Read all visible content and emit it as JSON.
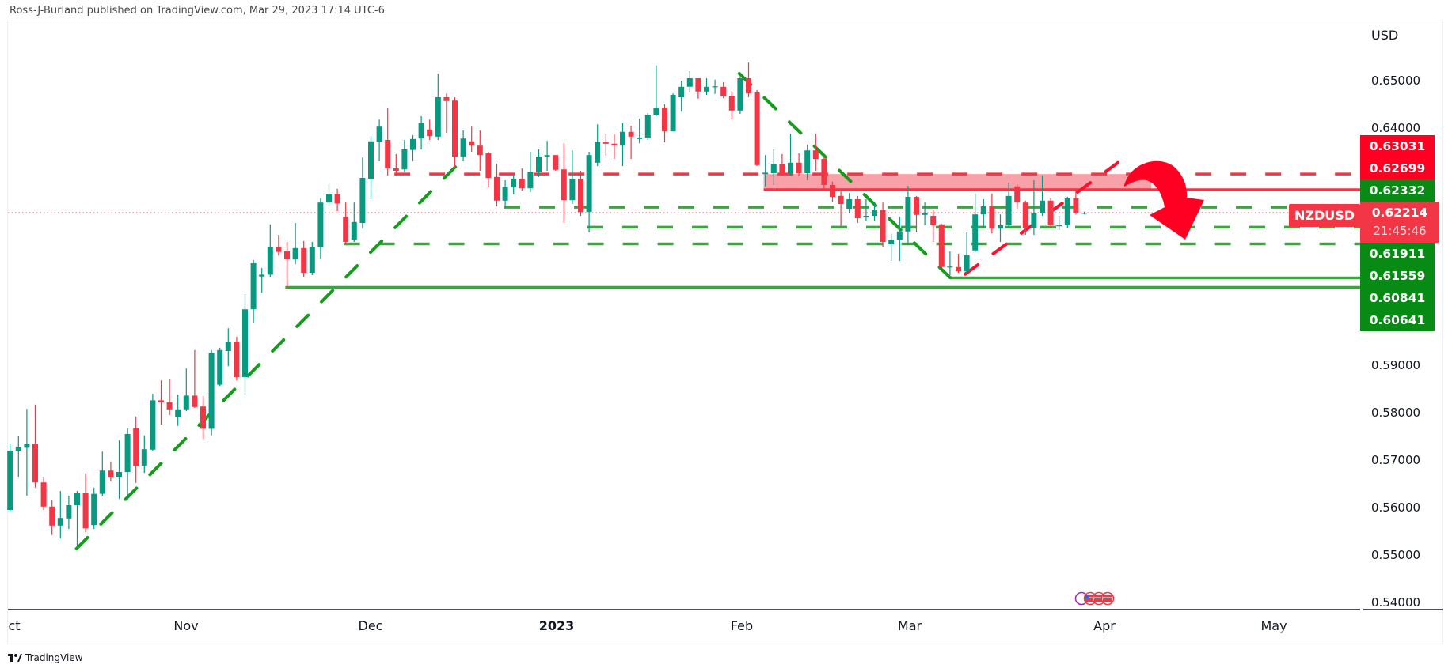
{
  "header": {
    "text": "Ross-J-Burland published on TradingView.com, Mar 29, 2023 17:14 UTC-6"
  },
  "footer": {
    "logo_text": "TradingView"
  },
  "colors": {
    "up": "#089981",
    "down": "#f23645",
    "line_red": "#f23645",
    "line_green": "#3ba33f",
    "trend_green": "#149c1c",
    "zone": "#f9a1a8",
    "arrow": "#ff0022",
    "tag_red": "#ff0022",
    "tag_green": "#078b15",
    "current_price_line": "#f23645"
  },
  "chart_data": {
    "type": "candlestick",
    "symbol": "NZDUSD",
    "currency": "USD",
    "ylim": [
      0.54,
      0.65
    ],
    "y_ticks": [
      "0.65000",
      "0.64000",
      "0.59000",
      "0.58000",
      "0.57000",
      "0.56000",
      "0.55000",
      "0.54000"
    ],
    "x_ticks": [
      "ct",
      "Nov",
      "Dec",
      "2023",
      "Feb",
      "Mar",
      "Apr",
      "May"
    ],
    "current_price": "0.62214",
    "countdown": "21:45:46",
    "candles_ohlc": [
      [
        0.5595,
        0.5735,
        0.559,
        0.572
      ],
      [
        0.572,
        0.575,
        0.5665,
        0.5728
      ],
      [
        0.5726,
        0.5808,
        0.5625,
        0.5735
      ],
      [
        0.5735,
        0.5817,
        0.5642,
        0.5653
      ],
      [
        0.5653,
        0.5665,
        0.5595,
        0.5602
      ],
      [
        0.5602,
        0.5616,
        0.5542,
        0.5562
      ],
      [
        0.5562,
        0.5635,
        0.5535,
        0.5578
      ],
      [
        0.5577,
        0.5625,
        0.5555,
        0.5605
      ],
      [
        0.5605,
        0.5635,
        0.5515,
        0.563
      ],
      [
        0.563,
        0.5672,
        0.5548,
        0.5556
      ],
      [
        0.5563,
        0.5642,
        0.5555,
        0.5629
      ],
      [
        0.5629,
        0.5718,
        0.5625,
        0.5678
      ],
      [
        0.5678,
        0.5697,
        0.5655,
        0.5665
      ],
      [
        0.5665,
        0.5742,
        0.5618,
        0.5675
      ],
      [
        0.5675,
        0.5767,
        0.5615,
        0.5755
      ],
      [
        0.5767,
        0.5792,
        0.5652,
        0.5688
      ],
      [
        0.5688,
        0.5752,
        0.5673,
        0.5723
      ],
      [
        0.5722,
        0.584,
        0.572,
        0.5826
      ],
      [
        0.5826,
        0.5868,
        0.5775,
        0.5822
      ],
      [
        0.5822,
        0.587,
        0.5795,
        0.5807
      ],
      [
        0.579,
        0.5838,
        0.5772,
        0.5807
      ],
      [
        0.5807,
        0.5893,
        0.5803,
        0.5836
      ],
      [
        0.5836,
        0.5932,
        0.581,
        0.5812
      ],
      [
        0.5813,
        0.5835,
        0.5745,
        0.5766
      ],
      [
        0.5766,
        0.5932,
        0.5752,
        0.5926
      ],
      [
        0.5859,
        0.5937,
        0.5856,
        0.5932
      ],
      [
        0.593,
        0.5978,
        0.5898,
        0.595
      ],
      [
        0.595,
        0.596,
        0.5868,
        0.5875
      ],
      [
        0.5875,
        0.605,
        0.5838,
        0.6018
      ],
      [
        0.6018,
        0.6122,
        0.599,
        0.6115
      ],
      [
        0.6087,
        0.6105,
        0.6053,
        0.6091
      ],
      [
        0.6091,
        0.6197,
        0.6085,
        0.615
      ],
      [
        0.615,
        0.6175,
        0.6131,
        0.6139
      ],
      [
        0.614,
        0.616,
        0.6063,
        0.6123
      ],
      [
        0.6123,
        0.62,
        0.6113,
        0.6147
      ],
      [
        0.6147,
        0.6162,
        0.6085,
        0.6095
      ],
      [
        0.6095,
        0.616,
        0.609,
        0.615
      ],
      [
        0.6149,
        0.6252,
        0.6125,
        0.6243
      ],
      [
        0.6243,
        0.6283,
        0.6235,
        0.626
      ],
      [
        0.626,
        0.6272,
        0.6225,
        0.6241
      ],
      [
        0.6213,
        0.6243,
        0.6156,
        0.616
      ],
      [
        0.6165,
        0.6243,
        0.616,
        0.6202
      ],
      [
        0.62,
        0.6338,
        0.6188,
        0.6295
      ],
      [
        0.6293,
        0.6383,
        0.625,
        0.6372
      ],
      [
        0.637,
        0.6418,
        0.633,
        0.6403
      ],
      [
        0.6375,
        0.6443,
        0.63,
        0.6315
      ],
      [
        0.6315,
        0.6345,
        0.63,
        0.631
      ],
      [
        0.6313,
        0.6375,
        0.6308,
        0.6355
      ],
      [
        0.6354,
        0.6385,
        0.633,
        0.6377
      ],
      [
        0.6378,
        0.6425,
        0.6355,
        0.641
      ],
      [
        0.6397,
        0.6418,
        0.6375,
        0.6383
      ],
      [
        0.6382,
        0.6515,
        0.6375,
        0.6465
      ],
      [
        0.6465,
        0.6473,
        0.639,
        0.6457
      ],
      [
        0.6458,
        0.6465,
        0.6318,
        0.634
      ],
      [
        0.634,
        0.6395,
        0.633,
        0.6378
      ],
      [
        0.6372,
        0.6403,
        0.635,
        0.6363
      ],
      [
        0.6363,
        0.6395,
        0.631,
        0.6343
      ],
      [
        0.6347,
        0.635,
        0.6275,
        0.6295
      ],
      [
        0.6297,
        0.6325,
        0.6235,
        0.6247
      ],
      [
        0.6247,
        0.629,
        0.6235,
        0.6276
      ],
      [
        0.6275,
        0.63,
        0.626,
        0.6293
      ],
      [
        0.6293,
        0.6315,
        0.6268,
        0.6273
      ],
      [
        0.6273,
        0.635,
        0.6265,
        0.6308
      ],
      [
        0.6307,
        0.6355,
        0.6297,
        0.634
      ],
      [
        0.634,
        0.6373,
        0.631,
        0.6343
      ],
      [
        0.6343,
        0.6343,
        0.631,
        0.6312
      ],
      [
        0.6313,
        0.6368,
        0.62,
        0.6248
      ],
      [
        0.6248,
        0.6353,
        0.624,
        0.6293
      ],
      [
        0.6293,
        0.631,
        0.6215,
        0.6223
      ],
      [
        0.6223,
        0.635,
        0.618,
        0.6343
      ],
      [
        0.6327,
        0.6408,
        0.632,
        0.637
      ],
      [
        0.637,
        0.6388,
        0.6342,
        0.6367
      ],
      [
        0.6367,
        0.6387,
        0.6335,
        0.6363
      ],
      [
        0.6363,
        0.641,
        0.632,
        0.6392
      ],
      [
        0.6392,
        0.6405,
        0.6335,
        0.6382
      ],
      [
        0.6377,
        0.642,
        0.6368,
        0.638
      ],
      [
        0.638,
        0.6432,
        0.6375,
        0.6428
      ],
      [
        0.6428,
        0.6532,
        0.6425,
        0.6443
      ],
      [
        0.6443,
        0.645,
        0.637,
        0.6393
      ],
      [
        0.6393,
        0.6473,
        0.6393,
        0.647
      ],
      [
        0.6465,
        0.65,
        0.6435,
        0.6487
      ],
      [
        0.6487,
        0.652,
        0.6475,
        0.6505
      ],
      [
        0.6505,
        0.6505,
        0.6462,
        0.6477
      ],
      [
        0.6477,
        0.6505,
        0.647,
        0.6487
      ],
      [
        0.6486,
        0.6502,
        0.6472,
        0.6488
      ],
      [
        0.6487,
        0.6497,
        0.6463,
        0.6467
      ],
      [
        0.6468,
        0.6478,
        0.6418,
        0.6437
      ],
      [
        0.6437,
        0.6508,
        0.643,
        0.6505
      ],
      [
        0.6505,
        0.6538,
        0.6465,
        0.6473
      ],
      [
        0.6475,
        0.648,
        0.632,
        0.6322
      ],
      [
        0.6303,
        0.6343,
        0.6277,
        0.6306
      ],
      [
        0.6305,
        0.6355,
        0.628,
        0.6325
      ],
      [
        0.6325,
        0.6345,
        0.63,
        0.6303
      ],
      [
        0.6305,
        0.6388,
        0.63,
        0.6327
      ],
      [
        0.6327,
        0.6347,
        0.63,
        0.6305
      ],
      [
        0.6305,
        0.6365,
        0.629,
        0.6353
      ],
      [
        0.6353,
        0.6388,
        0.631,
        0.6335
      ],
      [
        0.6335,
        0.6342,
        0.6272,
        0.628
      ],
      [
        0.628,
        0.6287,
        0.6245,
        0.6255
      ],
      [
        0.6257,
        0.6267,
        0.6193,
        0.624
      ],
      [
        0.623,
        0.6263,
        0.622,
        0.625
      ],
      [
        0.625,
        0.6257,
        0.62,
        0.621
      ],
      [
        0.6212,
        0.625,
        0.6205,
        0.6215
      ],
      [
        0.6215,
        0.6243,
        0.6205,
        0.6227
      ],
      [
        0.6227,
        0.6243,
        0.615,
        0.616
      ],
      [
        0.6155,
        0.6177,
        0.612,
        0.6165
      ],
      [
        0.6165,
        0.6213,
        0.612,
        0.6182
      ],
      [
        0.6182,
        0.6278,
        0.6157,
        0.6255
      ],
      [
        0.6255,
        0.6257,
        0.618,
        0.6217
      ],
      [
        0.6217,
        0.6243,
        0.6195,
        0.622
      ],
      [
        0.6215,
        0.6228,
        0.616,
        0.6195
      ],
      [
        0.6197,
        0.6198,
        0.6105,
        0.6107
      ],
      [
        0.6107,
        0.614,
        0.609,
        0.6108
      ],
      [
        0.6107,
        0.6135,
        0.6095,
        0.6098
      ],
      [
        0.6098,
        0.618,
        0.6093,
        0.6132
      ],
      [
        0.6142,
        0.6262,
        0.6138,
        0.6218
      ],
      [
        0.6218,
        0.625,
        0.619,
        0.6235
      ],
      [
        0.6235,
        0.6262,
        0.6178,
        0.6188
      ],
      [
        0.6188,
        0.6218,
        0.616,
        0.6195
      ],
      [
        0.6195,
        0.6285,
        0.619,
        0.6257
      ],
      [
        0.6277,
        0.6282,
        0.623,
        0.6243
      ],
      [
        0.6243,
        0.6247,
        0.6175,
        0.619
      ],
      [
        0.619,
        0.629,
        0.6175,
        0.622
      ],
      [
        0.622,
        0.63,
        0.6215,
        0.6247
      ],
      [
        0.6247,
        0.6252,
        0.619,
        0.6195
      ],
      [
        0.6193,
        0.6215,
        0.6185,
        0.6195
      ],
      [
        0.6195,
        0.6255,
        0.619,
        0.6252
      ],
      [
        0.6252,
        0.627,
        0.6218,
        0.6221
      ],
      [
        0.6221,
        0.6224,
        0.6218,
        0.62214
      ]
    ],
    "horizontal_levels": [
      {
        "price": "0.63031",
        "color": "red",
        "style": "dashed",
        "from_bar": 45.8,
        "tag": "red"
      },
      {
        "price": "0.62699",
        "color": "red",
        "style": "solid",
        "from_bar": 89.8,
        "tag": "red"
      },
      {
        "price": "0.62332",
        "color": "green",
        "style": "dashed",
        "from_bar": 58.9,
        "tag": "green"
      },
      {
        "price": "0.61911",
        "color": "green",
        "style": "dashed",
        "from_bar": 68.8,
        "tag": "green"
      },
      {
        "price": "0.61559",
        "color": "green",
        "style": "dashed",
        "from_bar": 39.8,
        "tag": "green"
      },
      {
        "price": "0.60841",
        "color": "green",
        "style": "solid",
        "from_bar": 112,
        "tag": "green"
      },
      {
        "price": "0.60641",
        "color": "green",
        "style": "solid",
        "from_bar": 32.8,
        "tag": "green"
      }
    ],
    "resistance_zone": {
      "low": 0.62699,
      "high": 0.63031,
      "from_bar": 89.8,
      "to_bar": 136
    },
    "trendlines": [
      {
        "color": "green",
        "style": "dashed",
        "from": [
          7.9,
          0.5513
        ],
        "to": [
          54,
          0.6335
        ]
      },
      {
        "color": "green",
        "style": "dashed",
        "from": [
          86.9,
          0.6515
        ],
        "to": [
          112,
          0.6085
        ]
      },
      {
        "color": "red",
        "style": "dashed",
        "from": [
          113.8,
          0.6092
        ],
        "to": [
          132,
          0.6327
        ]
      }
    ],
    "annotation": "bearish-curved-arrow"
  }
}
